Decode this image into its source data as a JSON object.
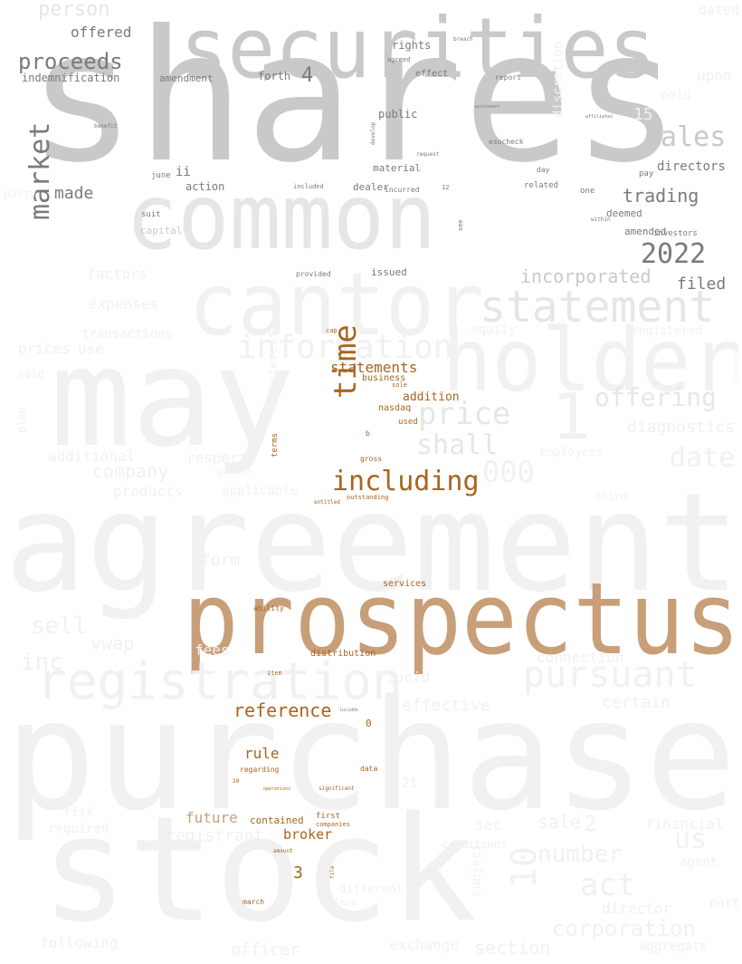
{
  "word_cloud": {
    "palette": {
      "background": "#ffffff",
      "faint": "#f1f1f1",
      "light_gray": "#e6e6e6",
      "mid_gray": "#c9c9c9",
      "dark_gray": "#7a7a7a",
      "tan": "#c89f78",
      "brown": "#a8651f",
      "dark_brown": "#8b4f14"
    },
    "words": [
      {
        "text": "shares",
        "tone": "mid_gray",
        "emphasis": "largest"
      },
      {
        "text": "securities",
        "tone": "mid_gray",
        "emphasis": "large"
      },
      {
        "text": "common",
        "tone": "light_gray",
        "emphasis": "large"
      },
      {
        "text": "cantor",
        "tone": "faint",
        "emphasis": "large"
      },
      {
        "text": "may",
        "tone": "faint",
        "emphasis": "largest"
      },
      {
        "text": "holder",
        "tone": "faint",
        "emphasis": "large"
      },
      {
        "text": "agreement",
        "tone": "faint",
        "emphasis": "largest"
      },
      {
        "text": "prospectus",
        "tone": "tan",
        "emphasis": "largest"
      },
      {
        "text": "purchase",
        "tone": "faint",
        "emphasis": "largest"
      },
      {
        "text": "stock",
        "tone": "faint",
        "emphasis": "largest"
      },
      {
        "text": "registration",
        "tone": "faint",
        "emphasis": "large"
      },
      {
        "text": "statement",
        "tone": "light_gray",
        "emphasis": "large"
      },
      {
        "text": "information",
        "tone": "faint",
        "emphasis": "medium"
      },
      {
        "text": "pursuant",
        "tone": "faint",
        "emphasis": "large"
      },
      {
        "text": "including",
        "tone": "brown",
        "emphasis": "medium"
      },
      {
        "text": "time",
        "tone": "brown",
        "emphasis": "medium"
      },
      {
        "text": "price",
        "tone": "light_gray",
        "emphasis": "medium"
      },
      {
        "text": "shall",
        "tone": "light_gray",
        "emphasis": "medium"
      },
      {
        "text": "market",
        "tone": "dark_gray",
        "emphasis": "medium"
      },
      {
        "text": "sales",
        "tone": "mid_gray",
        "emphasis": "medium"
      },
      {
        "text": "2022",
        "tone": "dark_gray",
        "emphasis": "medium"
      },
      {
        "text": "trading",
        "tone": "dark_gray",
        "emphasis": "small"
      },
      {
        "text": "proceeds",
        "tone": "dark_gray",
        "emphasis": "small"
      },
      {
        "text": "person",
        "tone": "light_gray",
        "emphasis": "small"
      },
      {
        "text": "offered",
        "tone": "dark_gray",
        "emphasis": "small"
      },
      {
        "text": "indemnification",
        "tone": "dark_gray",
        "emphasis": "small"
      },
      {
        "text": "amendment",
        "tone": "dark_gray",
        "emphasis": "small"
      },
      {
        "text": "forth",
        "tone": "dark_gray",
        "emphasis": "small"
      },
      {
        "text": "4",
        "tone": "dark_gray",
        "emphasis": "small"
      },
      {
        "text": "rights",
        "tone": "dark_gray",
        "emphasis": "small"
      },
      {
        "text": "public",
        "tone": "dark_gray",
        "emphasis": "small"
      },
      {
        "text": "effect",
        "tone": "dark_gray",
        "emphasis": "tiny"
      },
      {
        "text": "report",
        "tone": "dark_gray",
        "emphasis": "tiny"
      },
      {
        "text": "directors",
        "tone": "dark_gray",
        "emphasis": "small"
      },
      {
        "text": "made",
        "tone": "dark_gray",
        "emphasis": "small"
      },
      {
        "text": "action",
        "tone": "dark_gray",
        "emphasis": "small"
      },
      {
        "text": "ii",
        "tone": "dark_gray",
        "emphasis": "small"
      },
      {
        "text": "june",
        "tone": "dark_gray",
        "emphasis": "tiny"
      },
      {
        "text": "suit",
        "tone": "dark_gray",
        "emphasis": "tiny"
      },
      {
        "text": "capital",
        "tone": "mid_gray",
        "emphasis": "tiny"
      },
      {
        "text": "material",
        "tone": "dark_gray",
        "emphasis": "tiny"
      },
      {
        "text": "dealer",
        "tone": "dark_gray",
        "emphasis": "tiny"
      },
      {
        "text": "included",
        "tone": "dark_gray",
        "emphasis": "tiny"
      },
      {
        "text": "incurred",
        "tone": "dark_gray",
        "emphasis": "tiny"
      },
      {
        "text": "related",
        "tone": "dark_gray",
        "emphasis": "tiny"
      },
      {
        "text": "day",
        "tone": "dark_gray",
        "emphasis": "tiny"
      },
      {
        "text": "pay",
        "tone": "dark_gray",
        "emphasis": "tiny"
      },
      {
        "text": "one",
        "tone": "dark_gray",
        "emphasis": "tiny"
      },
      {
        "text": "deemed",
        "tone": "dark_gray",
        "emphasis": "tiny"
      },
      {
        "text": "amended",
        "tone": "dark_gray",
        "emphasis": "tiny"
      },
      {
        "text": "investors",
        "tone": "dark_gray",
        "emphasis": "tiny"
      },
      {
        "text": "within",
        "tone": "dark_gray",
        "emphasis": "tiny"
      },
      {
        "text": "incorporated",
        "tone": "mid_gray",
        "emphasis": "medium"
      },
      {
        "text": "filed",
        "tone": "dark_gray",
        "emphasis": "small"
      },
      {
        "text": "issued",
        "tone": "dark_gray",
        "emphasis": "tiny"
      },
      {
        "text": "provided",
        "tone": "dark_gray",
        "emphasis": "tiny"
      },
      {
        "text": "factors",
        "tone": "faint",
        "emphasis": "small"
      },
      {
        "text": "expenses",
        "tone": "faint",
        "emphasis": "small"
      },
      {
        "text": "transactions",
        "tone": "faint",
        "emphasis": "small"
      },
      {
        "text": "prices",
        "tone": "faint",
        "emphasis": "small"
      },
      {
        "text": "use",
        "tone": "faint",
        "emphasis": "small"
      },
      {
        "text": "equity",
        "tone": "faint",
        "emphasis": "small"
      },
      {
        "text": "offering",
        "tone": "light_gray",
        "emphasis": "medium"
      },
      {
        "text": "diagnostics",
        "tone": "faint",
        "emphasis": "small"
      },
      {
        "text": "date",
        "tone": "faint",
        "emphasis": "medium"
      },
      {
        "text": "1",
        "tone": "faint",
        "emphasis": "large"
      },
      {
        "text": "000",
        "tone": "faint",
        "emphasis": "medium"
      },
      {
        "text": "company",
        "tone": "faint",
        "emphasis": "small"
      },
      {
        "text": "additional",
        "tone": "faint",
        "emphasis": "small"
      },
      {
        "text": "respect",
        "tone": "faint",
        "emphasis": "small"
      },
      {
        "text": "products",
        "tone": "faint",
        "emphasis": "small"
      },
      {
        "text": "applicable",
        "tone": "faint",
        "emphasis": "small"
      },
      {
        "text": "statements",
        "tone": "brown",
        "emphasis": "small"
      },
      {
        "text": "addition",
        "tone": "brown",
        "emphasis": "small"
      },
      {
        "text": "business",
        "tone": "brown",
        "emphasis": "tiny"
      },
      {
        "text": "nasdaq",
        "tone": "brown",
        "emphasis": "tiny"
      },
      {
        "text": "used",
        "tone": "brown",
        "emphasis": "tiny"
      },
      {
        "text": "terms",
        "tone": "brown",
        "emphasis": "tiny"
      },
      {
        "text": "form",
        "tone": "faint",
        "emphasis": "small"
      },
      {
        "text": "sell",
        "tone": "faint",
        "emphasis": "medium"
      },
      {
        "text": "vwap",
        "tone": "faint",
        "emphasis": "small"
      },
      {
        "text": "inc",
        "tone": "faint",
        "emphasis": "medium"
      },
      {
        "text": "fees",
        "tone": "faint",
        "emphasis": "small"
      },
      {
        "text": "services",
        "tone": "brown",
        "emphasis": "tiny"
      },
      {
        "text": "ability",
        "tone": "brown",
        "emphasis": "tiny"
      },
      {
        "text": "distribution",
        "tone": "brown",
        "emphasis": "tiny"
      },
      {
        "text": "reference",
        "tone": "brown",
        "emphasis": "medium"
      },
      {
        "text": "lucid",
        "tone": "faint",
        "emphasis": "small"
      },
      {
        "text": "effective",
        "tone": "faint",
        "emphasis": "small"
      },
      {
        "text": "certain",
        "tone": "faint",
        "emphasis": "small"
      },
      {
        "text": "connection",
        "tone": "faint",
        "emphasis": "small"
      },
      {
        "text": "rule",
        "tone": "brown",
        "emphasis": "small"
      },
      {
        "text": "0",
        "tone": "brown",
        "emphasis": "tiny"
      },
      {
        "text": "future",
        "tone": "tan",
        "emphasis": "small"
      },
      {
        "text": "contained",
        "tone": "brown",
        "emphasis": "tiny"
      },
      {
        "text": "broker",
        "tone": "brown",
        "emphasis": "small"
      },
      {
        "text": "registrant",
        "tone": "faint",
        "emphasis": "small"
      },
      {
        "text": "required",
        "tone": "faint",
        "emphasis": "small"
      },
      {
        "text": "3",
        "tone": "brown",
        "emphasis": "small"
      },
      {
        "text": "sale",
        "tone": "faint",
        "emphasis": "small"
      },
      {
        "text": "2",
        "tone": "faint",
        "emphasis": "small"
      },
      {
        "text": "number",
        "tone": "faint",
        "emphasis": "medium"
      },
      {
        "text": "us",
        "tone": "faint",
        "emphasis": "medium"
      },
      {
        "text": "act",
        "tone": "faint",
        "emphasis": "medium"
      },
      {
        "text": "10",
        "tone": "faint",
        "emphasis": "medium"
      },
      {
        "text": "corporation",
        "tone": "faint",
        "emphasis": "medium"
      },
      {
        "text": "director",
        "tone": "faint",
        "emphasis": "small"
      },
      {
        "text": "section",
        "tone": "faint",
        "emphasis": "small"
      },
      {
        "text": "exchange",
        "tone": "faint",
        "emphasis": "small"
      },
      {
        "text": "officer",
        "tone": "faint",
        "emphasis": "small"
      },
      {
        "text": "following",
        "tone": "faint",
        "emphasis": "small"
      },
      {
        "text": "financial",
        "tone": "faint",
        "emphasis": "small"
      },
      {
        "text": "agent",
        "tone": "faint",
        "emphasis": "small"
      },
      {
        "text": "aggregate",
        "tone": "faint",
        "emphasis": "small"
      },
      {
        "text": "march",
        "tone": "brown",
        "emphasis": "tiny"
      },
      {
        "text": "unless",
        "tone": "faint",
        "emphasis": "tiny"
      },
      {
        "text": "upon",
        "tone": "faint",
        "emphasis": "small"
      },
      {
        "text": "paid",
        "tone": "faint",
        "emphasis": "small"
      },
      {
        "text": "dated",
        "tone": "faint",
        "emphasis": "small"
      },
      {
        "text": "15",
        "tone": "faint",
        "emphasis": "small"
      },
      {
        "text": "employees",
        "tone": "faint",
        "emphasis": "tiny"
      },
      {
        "text": "registered",
        "tone": "faint",
        "emphasis": "tiny"
      },
      {
        "text": "interest",
        "tone": "faint",
        "emphasis": "small"
      },
      {
        "text": "party",
        "tone": "faint",
        "emphasis": "small"
      },
      {
        "text": "ownership",
        "tone": "faint",
        "emphasis": "tiny"
      },
      {
        "text": "sec",
        "tone": "faint",
        "emphasis": "small"
      },
      {
        "text": "conditions",
        "tone": "faint",
        "emphasis": "small"
      },
      {
        "text": "discretion",
        "tone": "faint",
        "emphasis": "small"
      },
      {
        "text": "esocheck",
        "tone": "dark_gray",
        "emphasis": "tiny"
      },
      {
        "text": "first",
        "tone": "brown",
        "emphasis": "tiny"
      },
      {
        "text": "companies",
        "tone": "brown",
        "emphasis": "tiny"
      },
      {
        "text": "regarding",
        "tone": "brown",
        "emphasis": "tiny"
      },
      {
        "text": "item",
        "tone": "brown",
        "emphasis": "tiny"
      },
      {
        "text": "data",
        "tone": "brown",
        "emphasis": "tiny"
      },
      {
        "text": "significant",
        "tone": "brown",
        "emphasis": "tiny"
      },
      {
        "text": "gross",
        "tone": "brown",
        "emphasis": "tiny"
      },
      {
        "text": "outstanding",
        "tone": "brown",
        "emphasis": "tiny"
      },
      {
        "text": "entitled",
        "tone": "brown",
        "emphasis": "tiny"
      },
      {
        "text": "cap",
        "tone": "brown",
        "emphasis": "tiny"
      },
      {
        "text": "sole",
        "tone": "brown",
        "emphasis": "tiny"
      },
      {
        "text": "b",
        "tone": "brown",
        "emphasis": "tiny"
      },
      {
        "text": "12",
        "tone": "dark_gray",
        "emphasis": "tiny"
      },
      {
        "text": "see",
        "tone": "dark_gray",
        "emphasis": "tiny"
      },
      {
        "text": "request",
        "tone": "dark_gray",
        "emphasis": "tiny"
      },
      {
        "text": "develop",
        "tone": "dark_gray",
        "emphasis": "tiny"
      },
      {
        "text": "agreed",
        "tone": "dark_gray",
        "emphasis": "tiny"
      },
      {
        "text": "breach",
        "tone": "dark_gray",
        "emphasis": "tiny"
      },
      {
        "text": "purchaser",
        "tone": "dark_gray",
        "emphasis": "tiny"
      },
      {
        "text": "affiliates",
        "tone": "dark_gray",
        "emphasis": "tiny"
      },
      {
        "text": "benefit",
        "tone": "dark_gray",
        "emphasis": "tiny"
      },
      {
        "text": "luciddx",
        "tone": "dark_gray",
        "emphasis": "tiny"
      },
      {
        "text": "20",
        "tone": "brown",
        "emphasis": "tiny"
      },
      {
        "text": "21",
        "tone": "faint",
        "emphasis": "small"
      },
      {
        "text": "operations",
        "tone": "brown",
        "emphasis": "tiny"
      },
      {
        "text": "amount",
        "tone": "brown",
        "emphasis": "tiny"
      },
      {
        "text": "file",
        "tone": "brown",
        "emphasis": "tiny"
      },
      {
        "text": "different",
        "tone": "faint",
        "emphasis": "small"
      },
      {
        "text": "subject",
        "tone": "faint",
        "emphasis": "small"
      },
      {
        "text": "risk",
        "tone": "faint",
        "emphasis": "small"
      },
      {
        "text": "growth",
        "tone": "faint",
        "emphasis": "small"
      },
      {
        "text": "third",
        "tone": "faint",
        "emphasis": "small"
      },
      {
        "text": "plan",
        "tone": "faint",
        "emphasis": "small"
      },
      {
        "text": "sold",
        "tone": "faint",
        "emphasis": "small"
      },
      {
        "text": "part",
        "tone": "faint",
        "emphasis": "small"
      }
    ]
  }
}
